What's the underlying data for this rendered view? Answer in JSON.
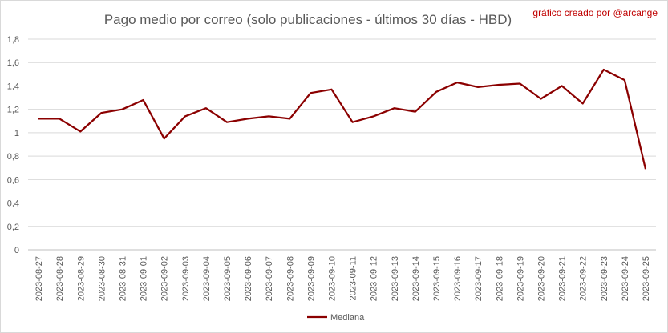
{
  "chart_data": {
    "type": "line",
    "title": "Pago medio por correo (solo publicaciones - últimos 30 días - HBD)",
    "credit": "gráfico creado por @arcange",
    "xlabel": "",
    "ylabel": "",
    "ylim": [
      0,
      1.8
    ],
    "yticks": [
      "0",
      "0,2",
      "0,4",
      "0,6",
      "0,8",
      "1",
      "1,2",
      "1,4",
      "1,6",
      "1,8"
    ],
    "grid": true,
    "legend_position": "bottom",
    "x": [
      "2023-08-27",
      "2023-08-28",
      "2023-08-29",
      "2023-08-30",
      "2023-08-31",
      "2023-09-01",
      "2023-09-02",
      "2023-09-03",
      "2023-09-04",
      "2023-09-05",
      "2023-09-06",
      "2023-09-07",
      "2023-09-08",
      "2023-09-09",
      "2023-09-10",
      "2023-09-11",
      "2023-09-12",
      "2023-09-13",
      "2023-09-14",
      "2023-09-15",
      "2023-09-16",
      "2023-09-17",
      "2023-09-18",
      "2023-09-19",
      "2023-09-20",
      "2023-09-21",
      "2023-09-22",
      "2023-09-23",
      "2023-09-24",
      "2023-09-25"
    ],
    "series": [
      {
        "name": "Mediana",
        "color": "#8b0000",
        "values": [
          1.12,
          1.12,
          1.01,
          1.17,
          1.2,
          1.28,
          0.95,
          1.14,
          1.21,
          1.09,
          1.12,
          1.14,
          1.12,
          1.34,
          1.37,
          1.09,
          1.14,
          1.21,
          1.18,
          1.35,
          1.43,
          1.39,
          1.41,
          1.42,
          1.29,
          1.4,
          1.25,
          1.54,
          1.45,
          0.69
        ]
      }
    ]
  }
}
